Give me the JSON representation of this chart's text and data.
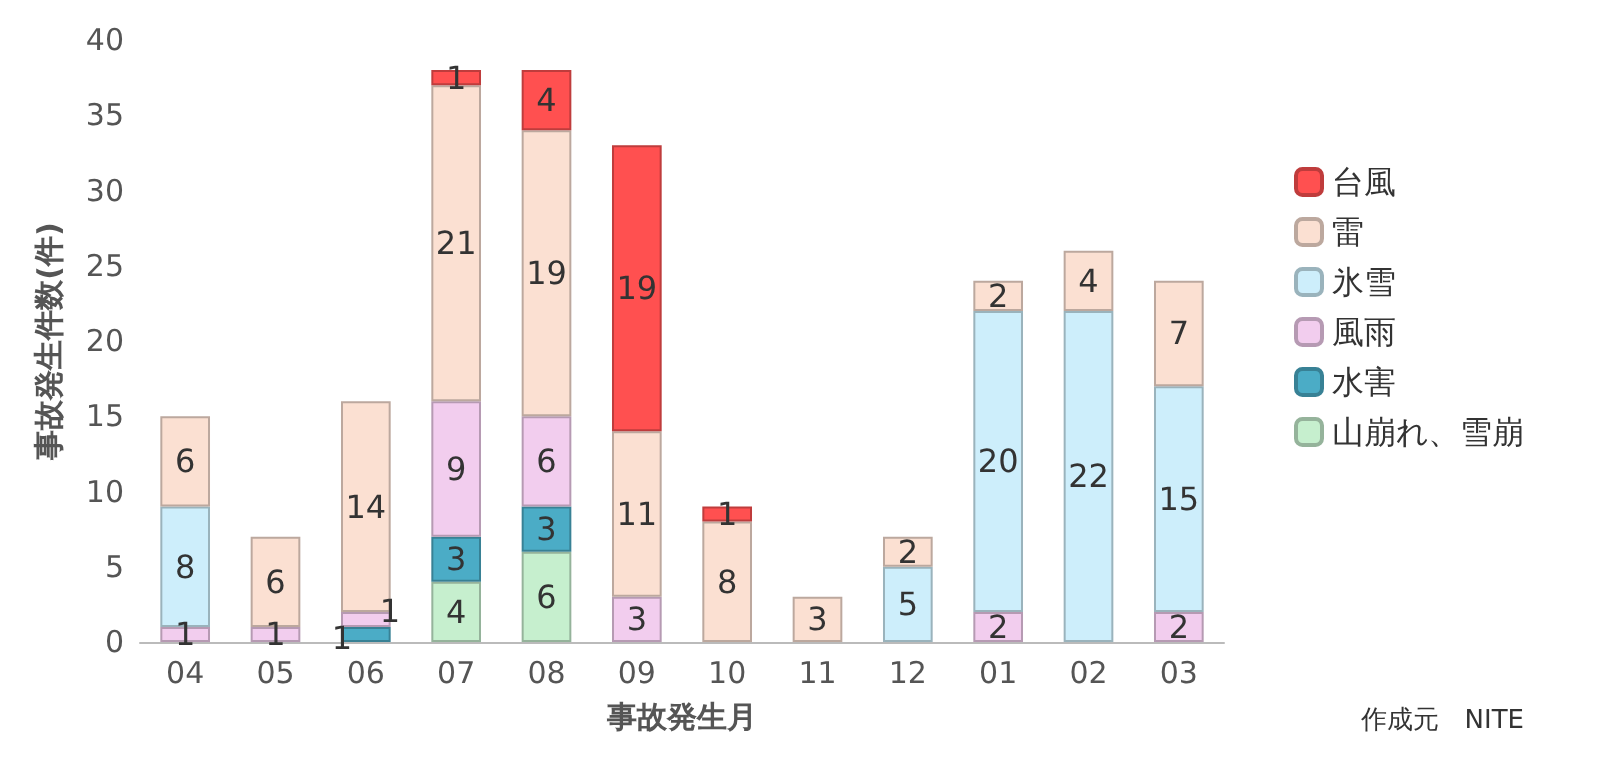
{
  "chart_data": {
    "type": "bar",
    "stacked": true,
    "xlabel": "事故発生月",
    "ylabel": "事故発生件数(件)",
    "categories": [
      "04",
      "05",
      "06",
      "07",
      "08",
      "09",
      "10",
      "11",
      "12",
      "01",
      "02",
      "03"
    ],
    "series": [
      {
        "name": "山崩れ、雪崩",
        "color": "#c6efce",
        "values": [
          null,
          null,
          null,
          4,
          6,
          null,
          null,
          null,
          null,
          null,
          null,
          null
        ]
      },
      {
        "name": "水害",
        "color": "#4bacc6",
        "values": [
          null,
          null,
          1,
          3,
          3,
          null,
          null,
          null,
          null,
          null,
          null,
          null
        ]
      },
      {
        "name": "風雨",
        "color": "#f2cdee",
        "values": [
          1,
          1,
          1,
          9,
          6,
          3,
          null,
          null,
          null,
          2,
          null,
          2
        ]
      },
      {
        "name": "氷雪",
        "color": "#cdeefb",
        "values": [
          8,
          null,
          null,
          null,
          null,
          null,
          null,
          null,
          5,
          20,
          22,
          15
        ]
      },
      {
        "name": "雷",
        "color": "#fbe0d2",
        "values": [
          6,
          6,
          14,
          21,
          19,
          11,
          8,
          3,
          2,
          2,
          4,
          7
        ]
      },
      {
        "name": "台風",
        "color": "#ff5050",
        "values": [
          null,
          null,
          null,
          1,
          4,
          19,
          1,
          null,
          null,
          null,
          null,
          null
        ]
      }
    ],
    "ylim": [
      0,
      40
    ],
    "yticks": [
      0,
      5,
      10,
      15,
      20,
      25,
      30,
      35,
      40
    ],
    "grid": false,
    "legend": "right",
    "data_labels": true,
    "annotations": [
      "作成元　NITE"
    ]
  }
}
